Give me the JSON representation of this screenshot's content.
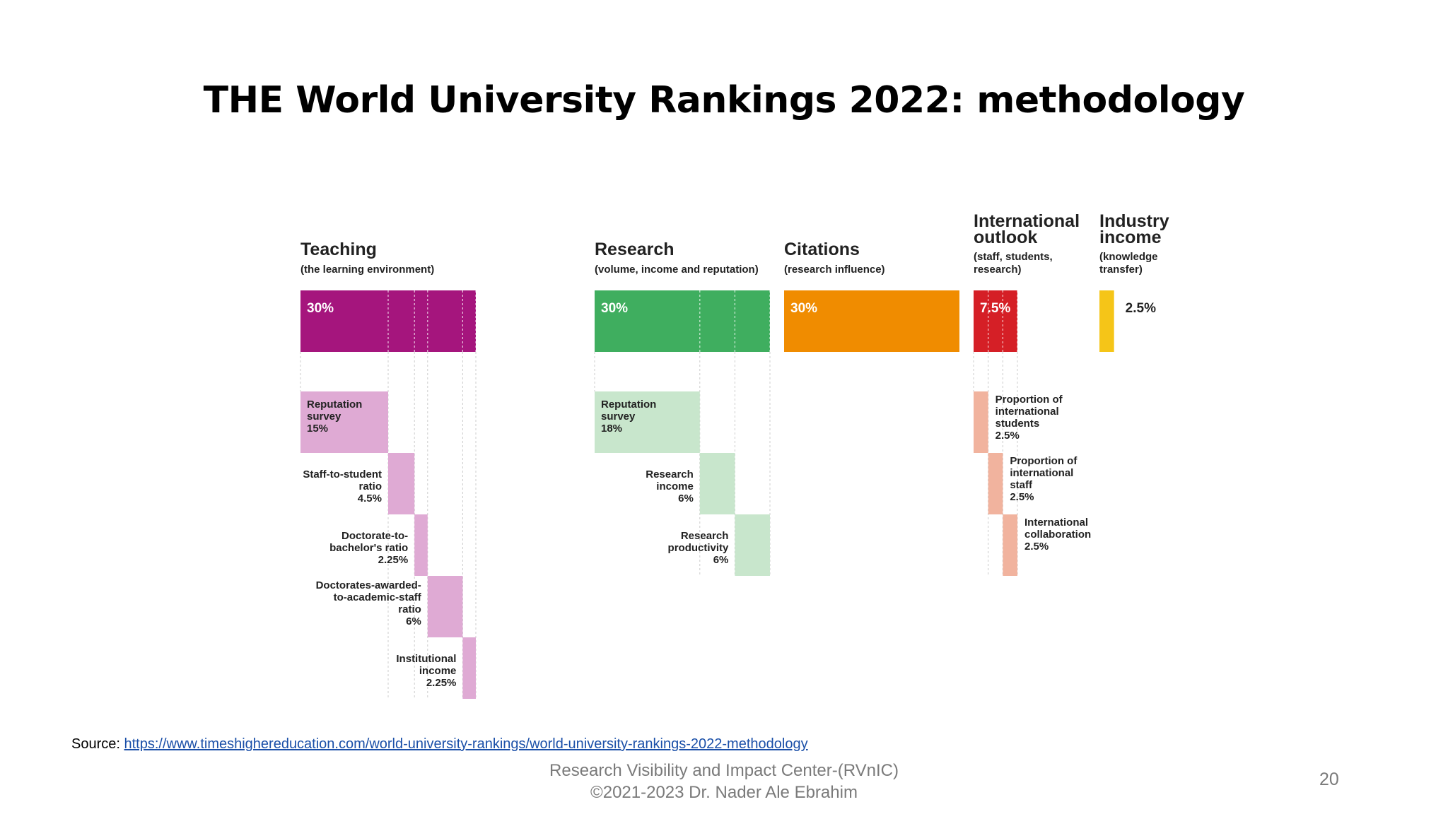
{
  "slide": {
    "title": "THE World University Rankings 2022: methodology",
    "source_label": "Source:",
    "source_url": "https://www.timeshighereducation.com/world-university-rankings/world-university-rankings-2022-methodology",
    "footer_line1": "Research Visibility and Impact Center-(RVnIC)",
    "footer_line2": "©2021-2023 Dr. Nader Ale Ebrahim",
    "page_number": "20"
  },
  "chart_data": {
    "type": "bar",
    "title": "",
    "pillars": [
      {
        "name": "Teaching",
        "subtitle": "(the learning environment)",
        "value": 30,
        "label": "30%",
        "color": "#a5157d",
        "light_color": "#dfaad4",
        "indicators": [
          {
            "lines": [
              "Reputation",
              "survey"
            ],
            "value": 15,
            "label": "15%"
          },
          {
            "lines": [
              "Staff-to-student",
              "ratio"
            ],
            "value": 4.5,
            "label": "4.5%"
          },
          {
            "lines": [
              "Doctorate-to-",
              "bachelor's ratio"
            ],
            "value": 2.25,
            "label": "2.25%"
          },
          {
            "lines": [
              "Doctorates-awarded-",
              "to-academic-staff",
              "ratio"
            ],
            "value": 6,
            "label": "6%"
          },
          {
            "lines": [
              "Institutional",
              "income"
            ],
            "value": 2.25,
            "label": "2.25%"
          }
        ]
      },
      {
        "name": "Research",
        "subtitle": "(volume, income and reputation)",
        "value": 30,
        "label": "30%",
        "color": "#3fae5f",
        "light_color": "#c8e6cc",
        "indicators": [
          {
            "lines": [
              "Reputation",
              "survey"
            ],
            "value": 18,
            "label": "18%"
          },
          {
            "lines": [
              "Research",
              "income"
            ],
            "value": 6,
            "label": "6%"
          },
          {
            "lines": [
              "Research",
              "productivity"
            ],
            "value": 6,
            "label": "6%"
          }
        ]
      },
      {
        "name": "Citations",
        "subtitle": "(research influence)",
        "value": 30,
        "label": "30%",
        "color": "#f08c00",
        "light_color": "#f8c98a",
        "indicators": []
      },
      {
        "name": "International outlook",
        "name_lines": [
          "International",
          "outlook"
        ],
        "subtitle_lines": [
          "(staff, students,",
          "research)"
        ],
        "value": 7.5,
        "label": "7.5%",
        "color": "#d51f26",
        "light_color": "#f1b39e",
        "indicators": [
          {
            "lines": [
              "Proportion of",
              "international",
              "students"
            ],
            "value": 2.5,
            "label": "2.5%"
          },
          {
            "lines": [
              "Proportion of",
              "international",
              "staff"
            ],
            "value": 2.5,
            "label": "2.5%"
          },
          {
            "lines": [
              "International",
              "collaboration"
            ],
            "value": 2.5,
            "label": "2.5%"
          }
        ]
      },
      {
        "name": "Industry income",
        "name_lines": [
          "Industry",
          "income"
        ],
        "subtitle_lines": [
          "(knowledge",
          "transfer)"
        ],
        "value": 2.5,
        "label": "2.5%",
        "color": "#f5c518",
        "light_color": "#f5c518",
        "indicators": []
      }
    ]
  }
}
